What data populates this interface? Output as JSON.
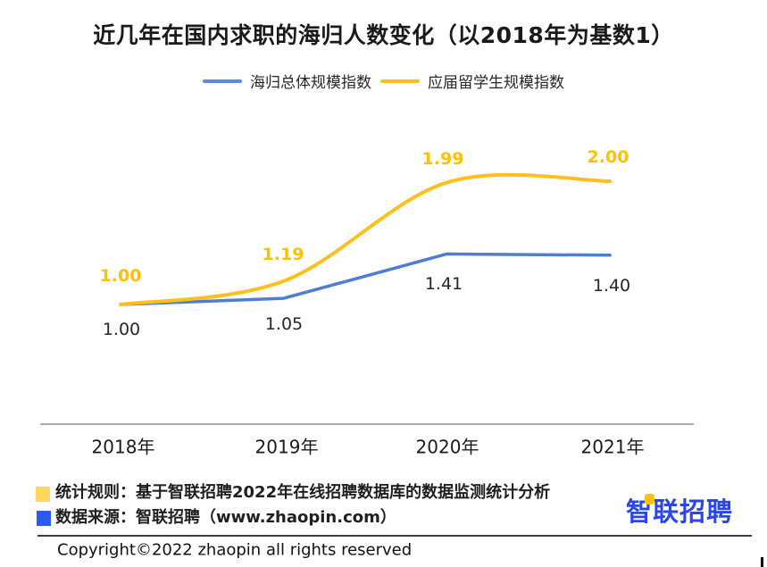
{
  "title": "近几年在国内求职的海归人数变化（以2018年为基数1）",
  "chart_data": {
    "type": "line",
    "categories": [
      "2018年",
      "2019年",
      "2020年",
      "2021年"
    ],
    "series": [
      {
        "name": "海归总体规模指数",
        "color": "#4e7dd4",
        "smooth": false,
        "values": [
          1.0,
          1.05,
          1.41,
          1.4
        ],
        "labels": [
          "1.00",
          "1.05",
          "1.41",
          "1.40"
        ],
        "label_color": "#262626"
      },
      {
        "name": "应届留学生规模指数",
        "color": "#ffc01e",
        "smooth": true,
        "values": [
          1.0,
          1.19,
          1.99,
          2.0
        ],
        "labels": [
          "1.00",
          "1.19",
          "1.99",
          "2.00"
        ],
        "label_color": "#ffc000"
      }
    ],
    "title": "近几年在国内求职的海归人数变化（以2018年为基数1）",
    "xlabel": "",
    "ylabel": "",
    "ylim": [
      0.9,
      2.15
    ],
    "grid": false,
    "legend_position": "top",
    "baseline_note": "以2018年为基数1"
  },
  "footer": {
    "stat_rule": "统计规则：基于智联招聘2022年在线招聘数据库的数据监测统计分析",
    "data_source": "数据来源：智联招聘（www.zhaopin.com）",
    "copyright": "Copyright©2022 zhaopin all rights reserved",
    "stat_rule_square_color": "#ffd95c",
    "data_source_square_color": "#2c5bf2"
  },
  "logo": {
    "text": "智联招聘",
    "color": "#2946ef",
    "accent_color": "#ffc01e"
  }
}
